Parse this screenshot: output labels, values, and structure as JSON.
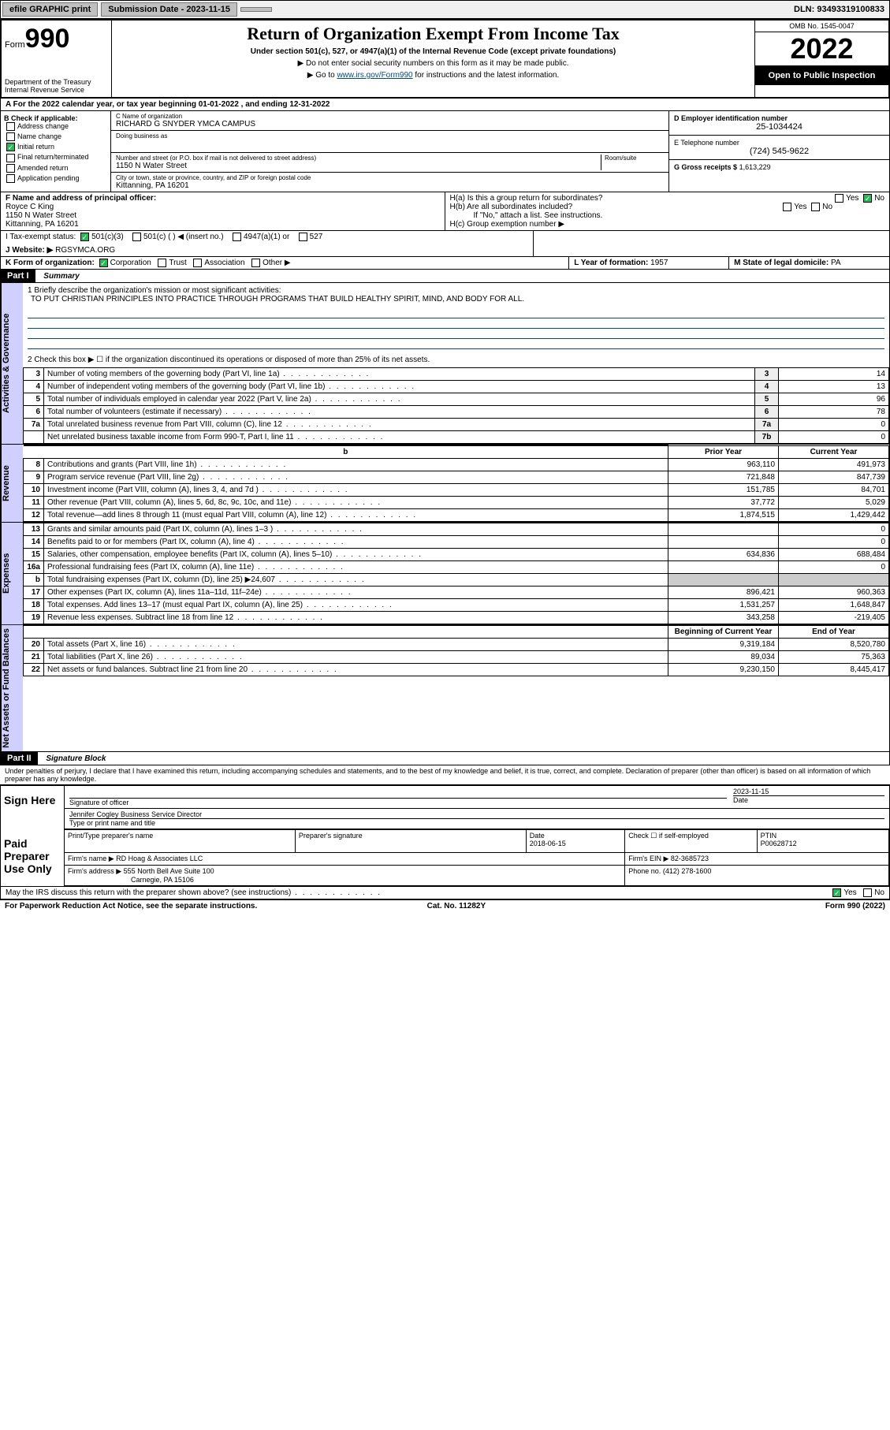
{
  "topbar": {
    "efile": "efile GRAPHIC print",
    "subdate_label": "Submission Date - 2023-11-15",
    "dln": "DLN: 93493319100833"
  },
  "header": {
    "form_prefix": "Form",
    "form_no": "990",
    "dept": "Department of the Treasury Internal Revenue Service",
    "title": "Return of Organization Exempt From Income Tax",
    "sub": "Under section 501(c), 527, or 4947(a)(1) of the Internal Revenue Code (except private foundations)",
    "note1": "▶ Do not enter social security numbers on this form as it may be made public.",
    "note2_pre": "▶ Go to ",
    "note2_link": "www.irs.gov/Form990",
    "note2_post": " for instructions and the latest information.",
    "omb": "OMB No. 1545-0047",
    "year": "2022",
    "otp": "Open to Public Inspection"
  },
  "row_a": "A For the 2022 calendar year, or tax year beginning 01-01-2022   , and ending 12-31-2022",
  "box_b": {
    "label": "B Check if applicable:",
    "items": [
      "Address change",
      "Name change",
      "Initial return",
      "Final return/terminated",
      "Amended return",
      "Application pending"
    ],
    "checked_idx": 2
  },
  "box_c": {
    "name_label": "C Name of organization",
    "name": "RICHARD G SNYDER YMCA CAMPUS",
    "dba_label": "Doing business as",
    "addr_label": "Number and street (or P.O. box if mail is not delivered to street address)",
    "addr": "1150 N Water Street",
    "room_label": "Room/suite",
    "city_label": "City or town, state or province, country, and ZIP or foreign postal code",
    "city": "Kittanning, PA  16201"
  },
  "box_d": {
    "label": "D Employer identification number",
    "val": "25-1034424"
  },
  "box_e": {
    "label": "E Telephone number",
    "val": "(724) 545-9622"
  },
  "box_g": {
    "label": "G Gross receipts $",
    "val": "1,613,229"
  },
  "box_f": {
    "label": "F  Name and address of principal officer:",
    "name": "Royce C King",
    "addr1": "1150 N Water Street",
    "addr2": "Kittanning, PA  16201"
  },
  "box_h": {
    "ha": "H(a)  Is this a group return for subordinates?",
    "hb": "H(b)  Are all subordinates included?",
    "hb_note": "If \"No,\" attach a list. See instructions.",
    "hc": "H(c)  Group exemption number ▶",
    "yes": "Yes",
    "no": "No"
  },
  "row_i": {
    "label": "I   Tax-exempt status:",
    "opts": [
      "501(c)(3)",
      "501(c) (  ) ◀ (insert no.)",
      "4947(a)(1) or",
      "527"
    ]
  },
  "row_j": {
    "label": "J   Website: ▶",
    "val": "RGSYMCA.ORG"
  },
  "row_k": {
    "label": "K Form of organization:",
    "opts": [
      "Corporation",
      "Trust",
      "Association",
      "Other ▶"
    ]
  },
  "row_l": {
    "label": "L Year of formation:",
    "val": "1957"
  },
  "row_m": {
    "label": "M State of legal domicile:",
    "val": "PA"
  },
  "part1": {
    "hdr": "Part I",
    "title": "Summary",
    "q1_label": "1  Briefly describe the organization's mission or most significant activities:",
    "q1_val": "TO PUT CHRISTIAN PRINCIPLES INTO PRACTICE THROUGH PROGRAMS THAT BUILD HEALTHY SPIRIT, MIND, AND BODY FOR ALL.",
    "q2": "2  Check this box ▶ ☐  if the organization discontinued its operations or disposed of more than 25% of its net assets.",
    "vtabs": [
      "Activities & Governance",
      "Revenue",
      "Expenses",
      "Net Assets or Fund Balances"
    ],
    "gov_rows": [
      {
        "n": "3",
        "d": "Number of voting members of the governing body (Part VI, line 1a)",
        "box": "3",
        "v": "14"
      },
      {
        "n": "4",
        "d": "Number of independent voting members of the governing body (Part VI, line 1b)",
        "box": "4",
        "v": "13"
      },
      {
        "n": "5",
        "d": "Total number of individuals employed in calendar year 2022 (Part V, line 2a)",
        "box": "5",
        "v": "96"
      },
      {
        "n": "6",
        "d": "Total number of volunteers (estimate if necessary)",
        "box": "6",
        "v": "78"
      },
      {
        "n": "7a",
        "d": "Total unrelated business revenue from Part VIII, column (C), line 12",
        "box": "7a",
        "v": "0"
      },
      {
        "n": "",
        "d": "Net unrelated business taxable income from Form 990-T, Part I, line 11",
        "box": "7b",
        "v": "0"
      }
    ],
    "col_prior": "Prior Year",
    "col_current": "Current Year",
    "rev_rows": [
      {
        "n": "8",
        "d": "Contributions and grants (Part VIII, line 1h)",
        "p": "963,110",
        "c": "491,973"
      },
      {
        "n": "9",
        "d": "Program service revenue (Part VIII, line 2g)",
        "p": "721,848",
        "c": "847,739"
      },
      {
        "n": "10",
        "d": "Investment income (Part VIII, column (A), lines 3, 4, and 7d )",
        "p": "151,785",
        "c": "84,701"
      },
      {
        "n": "11",
        "d": "Other revenue (Part VIII, column (A), lines 5, 6d, 8c, 9c, 10c, and 11e)",
        "p": "37,772",
        "c": "5,029"
      },
      {
        "n": "12",
        "d": "Total revenue—add lines 8 through 11 (must equal Part VIII, column (A), line 12)",
        "p": "1,874,515",
        "c": "1,429,442"
      }
    ],
    "exp_rows": [
      {
        "n": "13",
        "d": "Grants and similar amounts paid (Part IX, column (A), lines 1–3 )",
        "p": "",
        "c": "0"
      },
      {
        "n": "14",
        "d": "Benefits paid to or for members (Part IX, column (A), line 4)",
        "p": "",
        "c": "0"
      },
      {
        "n": "15",
        "d": "Salaries, other compensation, employee benefits (Part IX, column (A), lines 5–10)",
        "p": "634,836",
        "c": "688,484"
      },
      {
        "n": "16a",
        "d": "Professional fundraising fees (Part IX, column (A), line 11e)",
        "p": "",
        "c": "0"
      },
      {
        "n": "b",
        "d": "Total fundraising expenses (Part IX, column (D), line 25) ▶24,607",
        "p": "—",
        "c": "—"
      },
      {
        "n": "17",
        "d": "Other expenses (Part IX, column (A), lines 11a–11d, 11f–24e)",
        "p": "896,421",
        "c": "960,363"
      },
      {
        "n": "18",
        "d": "Total expenses. Add lines 13–17 (must equal Part IX, column (A), line 25)",
        "p": "1,531,257",
        "c": "1,648,847"
      },
      {
        "n": "19",
        "d": "Revenue less expenses. Subtract line 18 from line 12",
        "p": "343,258",
        "c": "-219,405"
      }
    ],
    "col_begin": "Beginning of Current Year",
    "col_end": "End of Year",
    "net_rows": [
      {
        "n": "20",
        "d": "Total assets (Part X, line 16)",
        "p": "9,319,184",
        "c": "8,520,780"
      },
      {
        "n": "21",
        "d": "Total liabilities (Part X, line 26)",
        "p": "89,034",
        "c": "75,363"
      },
      {
        "n": "22",
        "d": "Net assets or fund balances. Subtract line 21 from line 20",
        "p": "9,230,150",
        "c": "8,445,417"
      }
    ]
  },
  "part2": {
    "hdr": "Part II",
    "title": "Signature Block",
    "decl": "Under penalties of perjury, I declare that I have examined this return, including accompanying schedules and statements, and to the best of my knowledge and belief, it is true, correct, and complete. Declaration of preparer (other than officer) is based on all information of which preparer has any knowledge.",
    "sign_here": "Sign Here",
    "sig_officer": "Signature of officer",
    "sig_date": "2023-11-15",
    "date_lbl": "Date",
    "officer_name": "Jennifer Cogley  Business Service Director",
    "type_lbl": "Type or print name and title",
    "paid": "Paid Preparer Use Only",
    "col_prep": "Print/Type preparer's name",
    "col_sig": "Preparer's signature",
    "col_date": "Date",
    "date_val": "2018-06-15",
    "col_check": "Check ☐ if self-employed",
    "col_ptin": "PTIN",
    "ptin": "P00628712",
    "firm_name_lbl": "Firm's name    ▶",
    "firm_name": "RD Hoag & Associates LLC",
    "firm_ein_lbl": "Firm's EIN ▶",
    "firm_ein": "82-3685723",
    "firm_addr_lbl": "Firm's address ▶",
    "firm_addr1": "555 North Bell Ave Suite 100",
    "firm_addr2": "Carnegie, PA  15106",
    "firm_phone_lbl": "Phone no.",
    "firm_phone": "(412) 278-1600",
    "discuss": "May the IRS discuss this return with the preparer shown above? (see instructions)",
    "yes": "Yes",
    "no": "No"
  },
  "footer": {
    "left": "For Paperwork Reduction Act Notice, see the separate instructions.",
    "mid": "Cat. No. 11282Y",
    "right": "Form 990 (2022)"
  }
}
